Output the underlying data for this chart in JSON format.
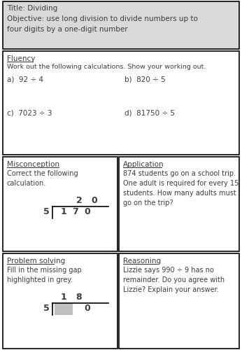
{
  "title_text": "Title: Dividing\nObjective: use long division to divide numbers up to\nfour digits by a one-digit number",
  "title_bg": "#d9d9d9",
  "fluency_header": "Fluency",
  "fluency_sub": "Work out the following calculations. Show your working out.",
  "fluency_items": [
    [
      "a)  92 ÷ 4",
      "b)  820 ÷ 5"
    ],
    [
      "c)  7023 ÷ 3",
      "d)  81750 ÷ 5"
    ]
  ],
  "misconception_header": "Misconception",
  "misconception_text": "Correct the following\ncalculation.",
  "application_header": "Application",
  "application_text": "874 students go on a school trip.\nOne adult is required for every 15\nstudents. How many adults must\ngo on the trip?",
  "problem_header": "Problem solving",
  "problem_text": "Fill in the missing gap\nhighlighted in grey.",
  "reasoning_header": "Reasoning",
  "reasoning_text": "Lizzie says 990 ÷ 9 has no\nremainder. Do you agree with\nLizzie? Explain your answer.",
  "bg_color": "#ffffff",
  "border_color": "#000000",
  "text_color": "#3d3d3d",
  "grey_fill": "#c0c0c0"
}
